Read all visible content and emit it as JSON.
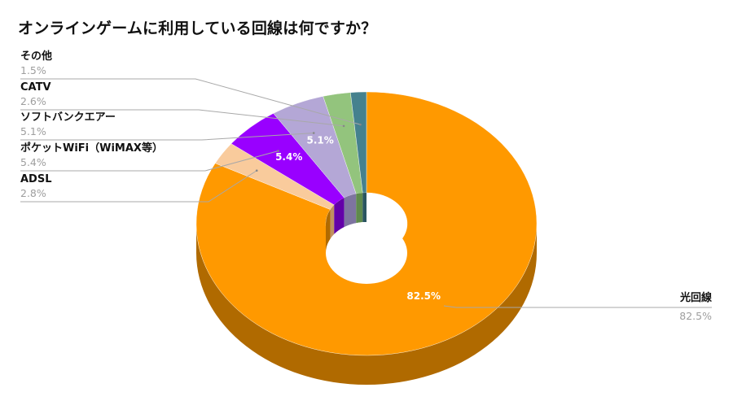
{
  "chart_data": {
    "type": "pie",
    "variant": "3d-donut",
    "title": "オンラインゲームに利用している回線は何ですか？",
    "slices": [
      {
        "label": "光回線",
        "value": 82.5,
        "value_label": "82.5%",
        "color": "#ff9900",
        "side_color": "#b06a00",
        "show_data_label": true
      },
      {
        "label": "ADSL",
        "value": 2.8,
        "value_label": "2.8%",
        "color": "#f9cb9c",
        "side_color": "#c09060",
        "show_data_label": false
      },
      {
        "label": "ポケットWiFi（WiMAX等）",
        "value": 5.4,
        "value_label": "5.4%",
        "color": "#9900ff",
        "side_color": "#6300a8",
        "show_data_label": true
      },
      {
        "label": "ソフトバンクエアー",
        "value": 5.1,
        "value_label": "5.1%",
        "color": "#b4a7d6",
        "side_color": "#7e74a0",
        "show_data_label": true
      },
      {
        "label": "CATV",
        "value": 2.6,
        "value_label": "2.6%",
        "color": "#93c47d",
        "side_color": "#5f8a4c",
        "show_data_label": false
      },
      {
        "label": "その他",
        "value": 1.5,
        "value_label": "1.5%",
        "color": "#45818e",
        "side_color": "#2a5560",
        "show_data_label": false
      }
    ]
  }
}
